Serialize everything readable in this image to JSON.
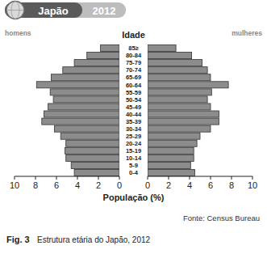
{
  "chart_data": {
    "type": "bar",
    "orientation": "horizontal",
    "title": "Japão",
    "subtitle": "2012",
    "ylabel": "Idade",
    "xlabel": "População (%)",
    "source": "Fonte: Census Bureau",
    "caption_prefix": "Fig. 3",
    "caption": "Estrutura etária do Japão, 2012",
    "categories": [
      "0-4",
      "5-9",
      "10-14",
      "15-19",
      "20-24",
      "25-29",
      "30-34",
      "35-39",
      "40-44",
      "45-49",
      "50-54",
      "55-59",
      "60-64",
      "65-69",
      "70-74",
      "75-79",
      "80-84",
      "85≥"
    ],
    "series": [
      {
        "name": "homens",
        "color": "#8c8c8c",
        "values": [
          4.3,
          4.6,
          5.1,
          5.2,
          5.1,
          5.6,
          6.2,
          7.4,
          7.2,
          6.8,
          6.3,
          6.6,
          7.9,
          6.5,
          5.4,
          4.3,
          3.1,
          1.8
        ]
      },
      {
        "name": "mulheres",
        "color": "#8c8c8c",
        "values": [
          4.5,
          4.1,
          4.4,
          4.4,
          4.7,
          5.0,
          6.0,
          6.8,
          6.8,
          6.0,
          5.7,
          6.1,
          7.7,
          6.0,
          5.7,
          5.2,
          4.2,
          2.7
        ]
      }
    ],
    "xlim": [
      0,
      10
    ],
    "xticks": [
      0,
      2,
      4,
      6,
      8,
      10
    ],
    "grid": false
  }
}
